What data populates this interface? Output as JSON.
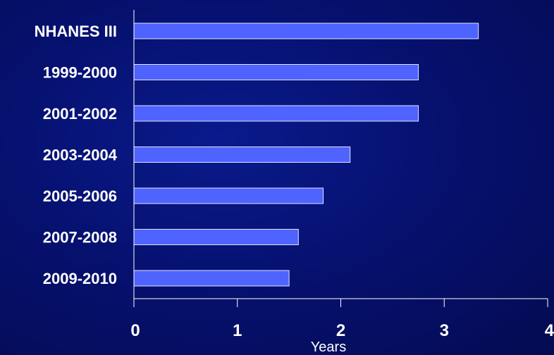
{
  "chart_data": {
    "type": "bar",
    "orientation": "horizontal",
    "categories": [
      "NHANES III",
      "1999-2000",
      "2001-2002",
      "2003-2004",
      "2005-2006",
      "2007-2008",
      "2009-2010"
    ],
    "values": [
      3.33,
      2.75,
      2.75,
      2.09,
      1.83,
      1.59,
      1.5
    ],
    "xlabel": "Years",
    "ylabel": "",
    "xlim": [
      0,
      4
    ],
    "xticks": [
      "0",
      "1",
      "2",
      "3",
      "4"
    ],
    "grid": false,
    "legend": "none",
    "colors": {
      "bar_fill": "#4f63ff",
      "bar_stroke": "#dfe4ff",
      "axis": "#ffffff",
      "background": "#061170"
    }
  }
}
